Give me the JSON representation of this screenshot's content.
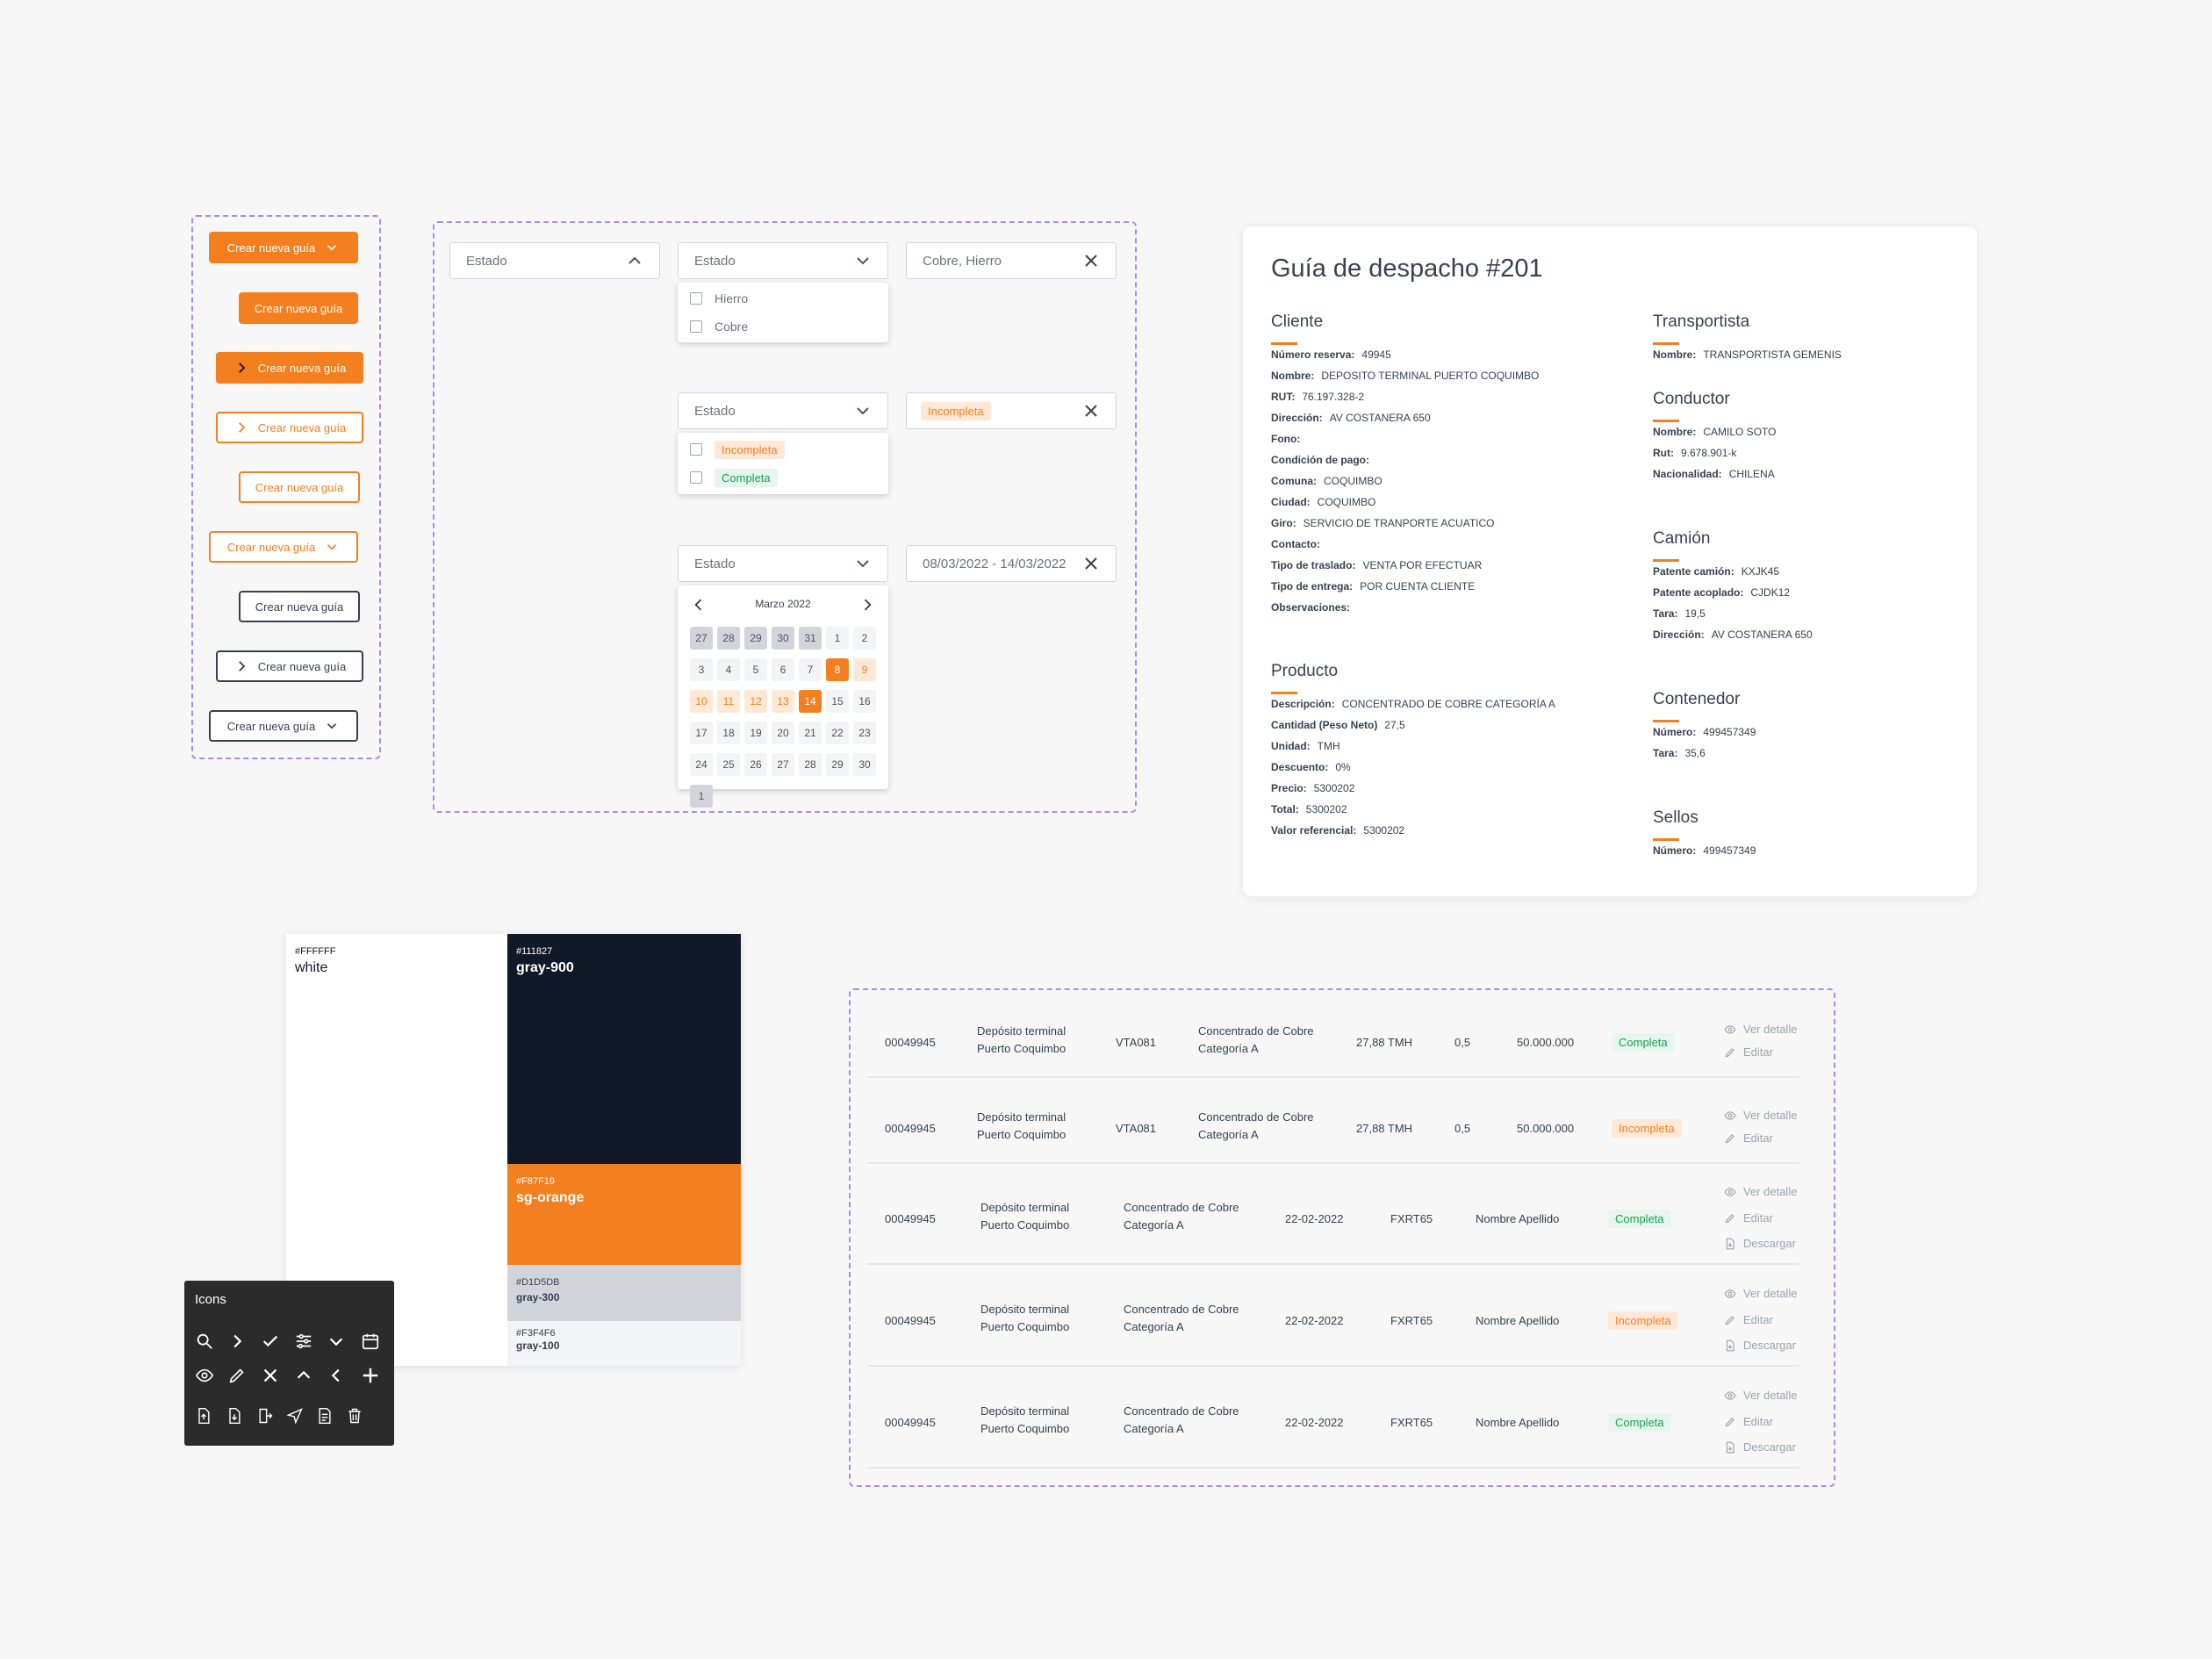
{
  "buttons": {
    "label": "Crear nueva guía"
  },
  "filters": {
    "estado_placeholder": "Estado",
    "selected_materials": "Cobre, Hierro",
    "materials": [
      "Hierro",
      "Cobre"
    ],
    "status_options": [
      "Incompleta",
      "Completa"
    ],
    "selected_status": "Incompleta",
    "date_range": "08/03/2022 - 14/03/2022"
  },
  "calendar": {
    "month": "Marzo 2022",
    "weeks": [
      [
        "27",
        "28",
        "29",
        "30",
        "31",
        "1",
        "2"
      ],
      [
        "3",
        "4",
        "5",
        "6",
        "7",
        "8",
        "9"
      ],
      [
        "10",
        "11",
        "12",
        "13",
        "14",
        "15",
        "16"
      ],
      [
        "17",
        "18",
        "19",
        "20",
        "21",
        "22",
        "23"
      ],
      [
        "24",
        "25",
        "26",
        "27",
        "28",
        "29",
        "30"
      ]
    ],
    "start_day": "8",
    "end_day": "14"
  },
  "detail": {
    "title": "Guía de despacho #201",
    "cliente": {
      "heading": "Cliente",
      "rows": [
        [
          "Número reserva:",
          "49945"
        ],
        [
          "Nombre:",
          "DEPOSITO TERMINAL PUERTO COQUIMBO"
        ],
        [
          "RUT:",
          "76.197.328-2"
        ],
        [
          "Dirección:",
          "AV COSTANERA 650"
        ],
        [
          "Fono:",
          ""
        ],
        [
          "Condición de pago:",
          ""
        ],
        [
          "Comuna:",
          "COQUIMBO"
        ],
        [
          "Ciudad:",
          "COQUIMBO"
        ],
        [
          "Giro:",
          "SERVICIO DE TRANPORTE ACUATICO"
        ],
        [
          "Contacto:",
          ""
        ],
        [
          "Tipo de traslado:",
          "VENTA POR EFECTUAR"
        ],
        [
          "Tipo de entrega:",
          "POR CUENTA CLIENTE"
        ],
        [
          "Observaciones:",
          ""
        ]
      ]
    },
    "producto": {
      "heading": "Producto",
      "rows": [
        [
          "Descripción:",
          "CONCENTRADO DE COBRE CATEGORÍA A"
        ],
        [
          "Cantidad (Peso Neto)",
          "27,5"
        ],
        [
          "Unidad:",
          "TMH"
        ],
        [
          "Descuento:",
          "0%"
        ],
        [
          "Precio:",
          "5300202"
        ],
        [
          "Total:",
          "5300202"
        ],
        [
          "Valor referencial:",
          "5300202"
        ]
      ]
    },
    "transportista": {
      "heading": "Transportista",
      "rows": [
        [
          "Nombre:",
          "TRANSPORTISTA GEMENIS"
        ]
      ]
    },
    "conductor": {
      "heading": "Conductor",
      "rows": [
        [
          "Nombre:",
          "CAMILO SOTO"
        ],
        [
          "Rut:",
          "9.678.901-k"
        ],
        [
          "Nacionalidad:",
          "CHILENA"
        ]
      ]
    },
    "camion": {
      "heading": "Camión",
      "rows": [
        [
          "Patente camión:",
          "KXJK45"
        ],
        [
          "Patente acoplado:",
          "CJDK12"
        ],
        [
          "Tara:",
          "19,5"
        ],
        [
          "Dirección:",
          "AV COSTANERA 650"
        ]
      ]
    },
    "contenedor": {
      "heading": "Contenedor",
      "rows": [
        [
          "Número:",
          "499457349"
        ],
        [
          "Tara:",
          "35,6"
        ]
      ]
    },
    "sellos": {
      "heading": "Sellos",
      "rows": [
        [
          "Número:",
          "499457349"
        ]
      ]
    }
  },
  "palette": {
    "white": {
      "hex": "#FFFFFF",
      "name": "white",
      "color": "#ffffff"
    },
    "gray900": {
      "hex": "#111827",
      "name": "gray-900",
      "color": "#111827"
    },
    "orange": {
      "hex": "#F87F19",
      "name": "sg-orange",
      "color": "#f47f1f"
    },
    "gray300": {
      "hex": "#D1D5DB",
      "name": "gray-300",
      "color": "#d1d5db"
    },
    "gray100": {
      "hex": "#F3F4F6",
      "name": "gray-100",
      "color": "#f3f4f6"
    }
  },
  "icons_panel": {
    "title": "Icons",
    "icons": [
      "search-icon",
      "chevron-right-icon",
      "check-icon",
      "sliders-icon",
      "chevron-down-icon",
      "calendar-icon",
      "eye-icon",
      "pencil-icon",
      "close-icon",
      "chevron-up-icon",
      "chevron-left-icon",
      "plus-icon",
      "file-upload-icon",
      "file-download-icon",
      "door-exit-icon",
      "send-icon",
      "document-icon",
      "trash-icon"
    ]
  },
  "table": {
    "actions": {
      "view": "Ver detalle",
      "edit": "Editar",
      "download": "Descargar"
    },
    "rows_a": [
      {
        "id": "00049945",
        "origin1": "Depósito terminal",
        "origin2": "Puerto Coquimbo",
        "code": "VTA081",
        "prod1": "Concentrado de Cobre",
        "prod2": "Categoría A",
        "qty": "27,88 TMH",
        "factor": "0,5",
        "amount": "50.000.000",
        "status": "Completa"
      },
      {
        "id": "00049945",
        "origin1": "Depósito terminal",
        "origin2": "Puerto Coquimbo",
        "code": "VTA081",
        "prod1": "Concentrado de Cobre",
        "prod2": "Categoría A",
        "qty": "27,88 TMH",
        "factor": "0,5",
        "amount": "50.000.000",
        "status": "Incompleta"
      }
    ],
    "rows_b": [
      {
        "id": "00049945",
        "origin1": "Depósito terminal",
        "origin2": "Puerto Coquimbo",
        "prod1": "Concentrado de Cobre",
        "prod2": "Categoría A",
        "date": "22-02-2022",
        "plate": "FXRT65",
        "person": "Nombre Apellido",
        "status": "Completa"
      },
      {
        "id": "00049945",
        "origin1": "Depósito terminal",
        "origin2": "Puerto Coquimbo",
        "prod1": "Concentrado de Cobre",
        "prod2": "Categoría A",
        "date": "22-02-2022",
        "plate": "FXRT65",
        "person": "Nombre Apellido",
        "status": "Incompleta"
      },
      {
        "id": "00049945",
        "origin1": "Depósito terminal",
        "origin2": "Puerto Coquimbo",
        "prod1": "Concentrado de Cobre",
        "prod2": "Categoría A",
        "date": "22-02-2022",
        "plate": "FXRT65",
        "person": "Nombre Apellido",
        "status": "Completa"
      }
    ]
  }
}
